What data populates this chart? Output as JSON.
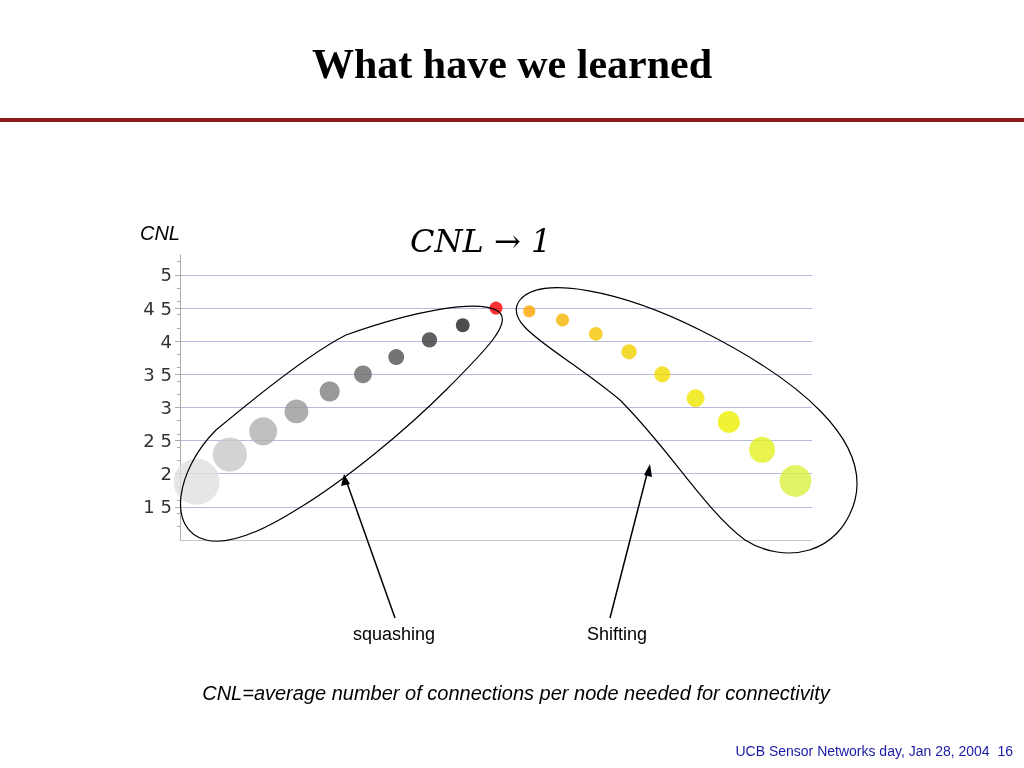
{
  "chart_data": {
    "type": "bubble",
    "title": "What have we learned",
    "subtitle": "CNL → 1",
    "ylabel": "CNL",
    "categories": [
      null,
      null,
      null,
      null,
      null,
      null,
      null,
      null,
      null,
      null,
      null,
      null,
      null,
      null,
      null,
      null,
      null,
      null,
      null
    ],
    "values": [
      1.88,
      2.29,
      2.64,
      2.94,
      3.24,
      3.5,
      3.76,
      4.02,
      4.24,
      4.5,
      4.45,
      4.32,
      4.11,
      3.84,
      3.5,
      3.14,
      2.78,
      2.36,
      1.89
    ],
    "sizes": [
      1,
      0.55,
      0.37,
      0.27,
      0.19,
      0.15,
      0.12,
      0.11,
      0.09,
      0.08,
      0.07,
      0.08,
      0.09,
      0.11,
      0.12,
      0.15,
      0.23,
      0.32,
      0.48
    ],
    "colors": [
      "#e0e0e0",
      "#c8c8c8",
      "#b0b0b0",
      "#989898",
      "#808080",
      "#686868",
      "#505050",
      "#383838",
      "#202020",
      "#ff0000",
      "#ffa500",
      "#f7b500",
      "#f5c400",
      "#f3d000",
      "#f1dc00",
      "#efe600",
      "#ecf000",
      "#e4f020",
      "#dcf040"
    ],
    "ylim": [
      1,
      5.3
    ],
    "yticks": [
      {
        "value": 1.5,
        "label": "1 5"
      },
      2,
      {
        "value": 2.5,
        "label": "2 5"
      },
      3,
      {
        "value": 3.5,
        "label": "3 5"
      },
      4,
      {
        "value": 4.5,
        "label": "4 5"
      },
      5
    ],
    "grid": "y",
    "annotations": [
      "squashing",
      "Shifting",
      "CNL=average number of connections per node needed for connectivity",
      "UCB Sensor Networks day, Jan 28, 2004  16"
    ]
  }
}
